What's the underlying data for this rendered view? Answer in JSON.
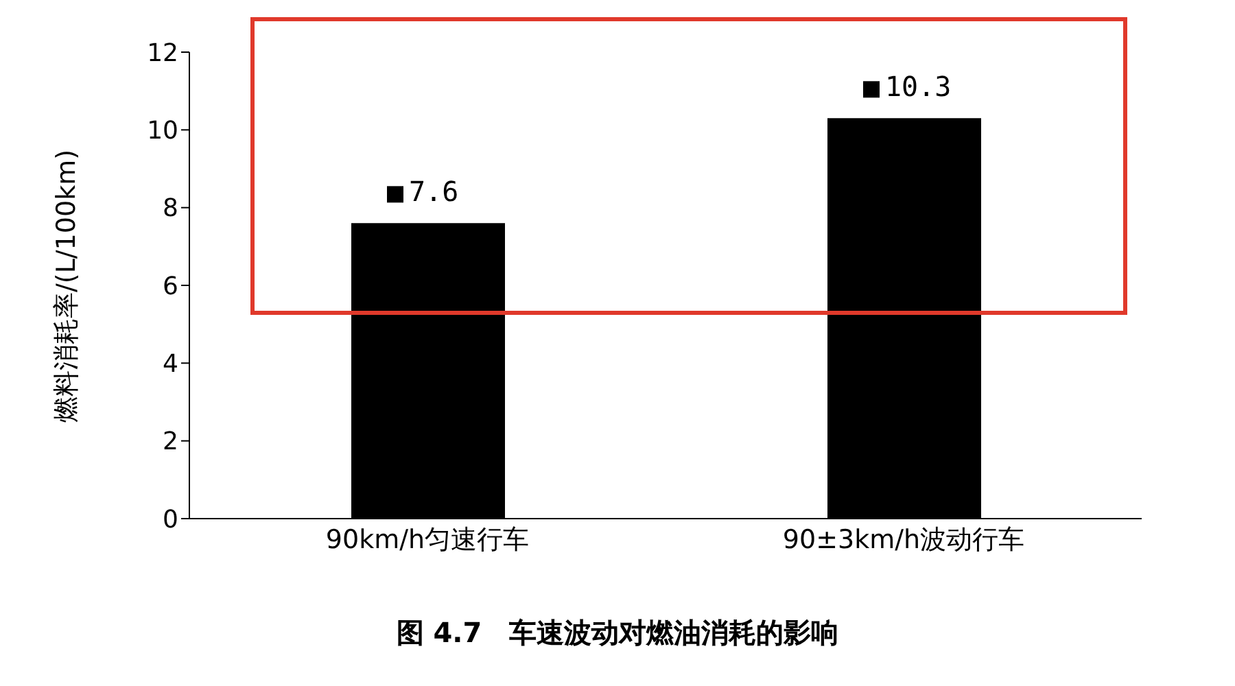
{
  "chart_data": {
    "type": "bar",
    "title": "图 4.7　车速波动对燃油消耗的影响",
    "ylabel": "燃料消耗率/(L/100km)",
    "categories": [
      "90km/h匀速行车",
      "90±3km/h波动行车"
    ],
    "values": [
      7.6,
      10.3
    ],
    "color": "#000000",
    "ylim": [
      0,
      12
    ],
    "yticks": [
      0,
      2,
      4,
      6,
      8,
      10,
      12
    ],
    "grid": false,
    "data_labels": true
  }
}
